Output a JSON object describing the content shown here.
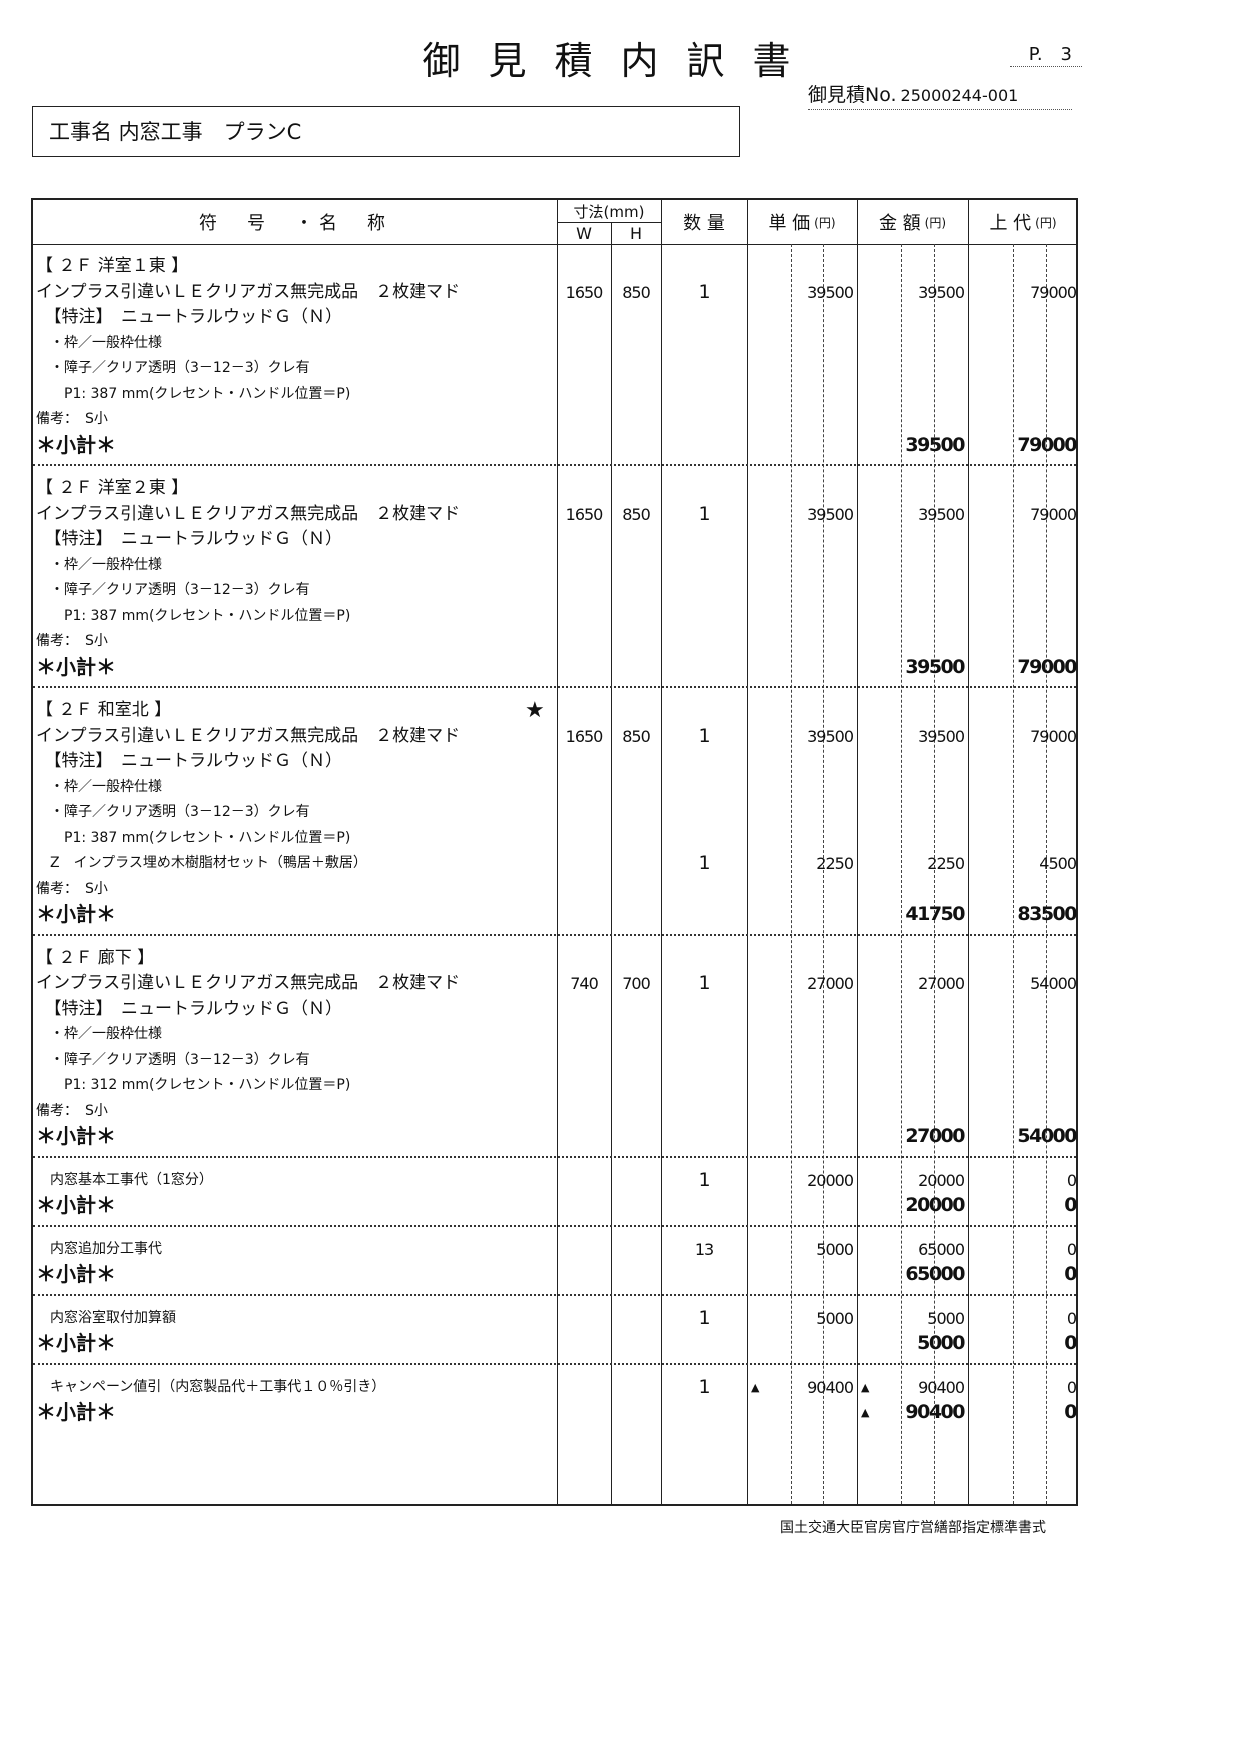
{
  "title": "御見積内訳書",
  "page_no": "P.　3",
  "estimate_no_label": "御見積No.",
  "estimate_no": "25000244-001",
  "project": "工事名 内窓工事　プランC",
  "headers": {
    "name": "符　号　・名　称",
    "size": "寸法(mm)",
    "w": "W",
    "h": "H",
    "qty": "数 量",
    "unit": "単 価",
    "amount": "金 額",
    "retail": "上 代",
    "yen": "(円)"
  },
  "sections": [
    {
      "lines": [
        {
          "name": "【 ２Ｆ 洋室１東 】"
        },
        {
          "name": "インプラス引違いＬＥクリアガス無完成品　２枚建マド",
          "w": "1650",
          "h": "850",
          "qty": "1",
          "unit": "39500",
          "amount": "39500",
          "retail": "79000"
        },
        {
          "name": "　【特注】　ニュートラルウッドＧ（Ｎ）"
        },
        {
          "name": "　・枠／一般枠仕様",
          "small": true
        },
        {
          "name": "　・障子／クリア透明（3－12－3）クレ有",
          "small": true
        },
        {
          "name": "　　P1: 387 mm(クレセント・ハンドル位置＝P)",
          "small": true
        },
        {
          "name": "備考：　S小",
          "small": true
        },
        {
          "name": "＊小計＊",
          "subtotal": true,
          "amount": "39500",
          "retail": "79000"
        }
      ]
    },
    {
      "lines": [
        {
          "name": "【 ２Ｆ 洋室２東 】"
        },
        {
          "name": "インプラス引違いＬＥクリアガス無完成品　２枚建マド",
          "w": "1650",
          "h": "850",
          "qty": "1",
          "unit": "39500",
          "amount": "39500",
          "retail": "79000"
        },
        {
          "name": "　【特注】　ニュートラルウッドＧ（Ｎ）"
        },
        {
          "name": "　・枠／一般枠仕様",
          "small": true
        },
        {
          "name": "　・障子／クリア透明（3－12－3）クレ有",
          "small": true
        },
        {
          "name": "　　P1: 387 mm(クレセント・ハンドル位置＝P)",
          "small": true
        },
        {
          "name": "備考：　S小",
          "small": true
        },
        {
          "name": "＊小計＊",
          "subtotal": true,
          "amount": "39500",
          "retail": "79000"
        }
      ]
    },
    {
      "lines": [
        {
          "name": "【 ２Ｆ 和室北 】",
          "star": "★"
        },
        {
          "name": "インプラス引違いＬＥクリアガス無完成品　２枚建マド",
          "w": "1650",
          "h": "850",
          "qty": "1",
          "unit": "39500",
          "amount": "39500",
          "retail": "79000"
        },
        {
          "name": "　【特注】　ニュートラルウッドＧ（Ｎ）"
        },
        {
          "name": "　・枠／一般枠仕様",
          "small": true
        },
        {
          "name": "　・障子／クリア透明（3－12－3）クレ有",
          "small": true
        },
        {
          "name": "　　P1: 387 mm(クレセント・ハンドル位置＝P)",
          "small": true
        },
        {
          "name": "　Z　インプラス埋め木樹脂材セット（鴨居＋敷居）",
          "small": true,
          "qty": "1",
          "unit": "2250",
          "amount": "2250",
          "retail": "4500"
        },
        {
          "name": "備考：　S小",
          "small": true
        },
        {
          "name": "＊小計＊",
          "subtotal": true,
          "amount": "41750",
          "retail": "83500"
        }
      ]
    },
    {
      "lines": [
        {
          "name": "【 ２Ｆ 廊下 】"
        },
        {
          "name": "インプラス引違いＬＥクリアガス無完成品　２枚建マド",
          "w": "740",
          "h": "700",
          "qty": "1",
          "unit": "27000",
          "amount": "27000",
          "retail": "54000"
        },
        {
          "name": "　【特注】　ニュートラルウッドＧ（Ｎ）"
        },
        {
          "name": "　・枠／一般枠仕様",
          "small": true
        },
        {
          "name": "　・障子／クリア透明（3－12－3）クレ有",
          "small": true
        },
        {
          "name": "　　P1: 312 mm(クレセント・ハンドル位置＝P)",
          "small": true
        },
        {
          "name": "備考：　S小",
          "small": true
        },
        {
          "name": "＊小計＊",
          "subtotal": true,
          "amount": "27000",
          "retail": "54000"
        }
      ]
    },
    {
      "lines": [
        {
          "name": "　内窓基本工事代（1窓分）",
          "small": true,
          "qty": "1",
          "unit": "20000",
          "amount": "20000",
          "retail": "0"
        },
        {
          "name": "＊小計＊",
          "subtotal": true,
          "amount": "20000",
          "retail": "0"
        }
      ]
    },
    {
      "lines": [
        {
          "name": "　内窓追加分工事代",
          "small": true,
          "qty": "13",
          "unit": "5000",
          "amount": "65000",
          "retail": "0"
        },
        {
          "name": "＊小計＊",
          "subtotal": true,
          "amount": "65000",
          "retail": "0"
        }
      ]
    },
    {
      "lines": [
        {
          "name": "　内窓浴室取付加算額",
          "small": true,
          "qty": "1",
          "unit": "5000",
          "amount": "5000",
          "retail": "0"
        },
        {
          "name": "＊小計＊",
          "subtotal": true,
          "amount": "5000",
          "retail": "0"
        }
      ]
    },
    {
      "lines": [
        {
          "name": "　キャンペーン値引（内窓製品代＋工事代１０％引き）",
          "small": true,
          "qty": "1",
          "unit": "90400",
          "unit_mark": "▲",
          "amount": "90400",
          "amount_mark": "▲",
          "retail": "0"
        },
        {
          "name": "＊小計＊",
          "subtotal": true,
          "amount": "90400",
          "amount_mark": "▲",
          "retail": "0"
        }
      ]
    }
  ],
  "footer": "国土交通大臣官房官庁営繕部指定標準書式"
}
